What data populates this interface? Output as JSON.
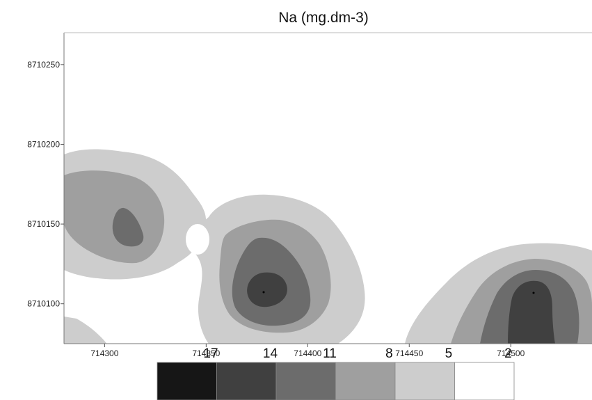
{
  "chart_data": {
    "type": "contour",
    "title": "Na (mg.dm-3)",
    "xlabel": "",
    "ylabel": "",
    "x_ticks": [
      714300,
      714350,
      714400,
      714450,
      714500
    ],
    "y_ticks": [
      8710100,
      8710150,
      8710200,
      8710250
    ],
    "xlim": [
      714280,
      714540
    ],
    "ylim": [
      8710075,
      8710270
    ],
    "grid": false,
    "levels": [
      17,
      14,
      11,
      8,
      5,
      2
    ],
    "legend_position": "bottom-center",
    "level_colors": [
      "#161616",
      "#404040",
      "#6c6c6c",
      "#9f9f9f",
      "#cdcdcd",
      "#ffffff"
    ],
    "peaks": [
      {
        "x": 714318,
        "y": 8710150,
        "level": 11
      },
      {
        "x": 714379,
        "y": 8710108,
        "level": 14
      },
      {
        "x": 714510,
        "y": 8710107,
        "level": 14
      }
    ]
  }
}
